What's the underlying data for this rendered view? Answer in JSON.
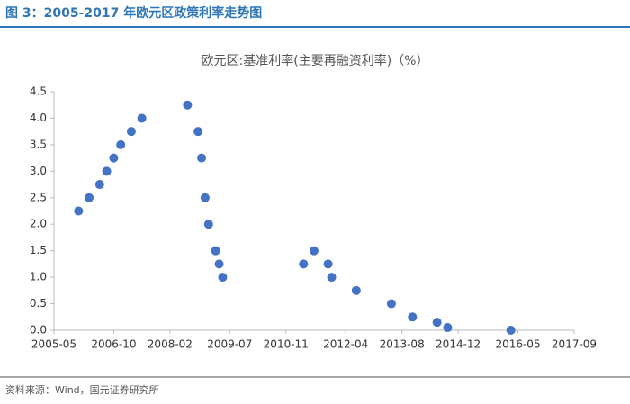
{
  "header": {
    "title": "图 3：2005-2017 年欧元区政策利率走势图"
  },
  "footer": {
    "source": "资料来源：Wind，国元证券研究所"
  },
  "chart_data": {
    "type": "scatter",
    "title": "欧元区:基准利率(主要再融资利率)（%）",
    "color": "#4472c4",
    "x": [
      "2005-12",
      "2006-03",
      "2006-06",
      "2006-08",
      "2006-10",
      "2006-12",
      "2007-03",
      "2007-06",
      "2008-07",
      "2008-10",
      "2008-11",
      "2008-12",
      "2009-01",
      "2009-03",
      "2009-04",
      "2009-05",
      "2011-04",
      "2011-07",
      "2011-11",
      "2011-12",
      "2012-07",
      "2013-05",
      "2013-11",
      "2014-06",
      "2014-09",
      "2016-03"
    ],
    "values": [
      2.25,
      2.5,
      2.75,
      3.0,
      3.25,
      3.5,
      3.75,
      4.0,
      4.25,
      3.75,
      3.25,
      2.5,
      2.0,
      1.5,
      1.25,
      1.0,
      1.25,
      1.5,
      1.25,
      1.0,
      0.75,
      0.5,
      0.25,
      0.15,
      0.05,
      0.0
    ],
    "xlim": [
      "2005-05",
      "2017-09"
    ],
    "xticks": [
      "2005-05",
      "2006-10",
      "2008-02",
      "2009-07",
      "2010-11",
      "2012-04",
      "2013-08",
      "2014-12",
      "2016-05",
      "2017-09"
    ],
    "ylim": [
      0,
      4.5
    ],
    "yticks": [
      {
        "value": 0,
        "label": "0.0"
      },
      {
        "value": 0.5,
        "label": "0.5"
      },
      {
        "value": 1,
        "label": "1.0"
      },
      {
        "value": 1.5,
        "label": "1.5"
      },
      {
        "value": 2,
        "label": "2.0"
      },
      {
        "value": 2.5,
        "label": "2.5"
      },
      {
        "value": 3,
        "label": "3.0"
      },
      {
        "value": 3.5,
        "label": "3.5"
      },
      {
        "value": 4,
        "label": "4.0"
      },
      {
        "value": 4.5,
        "label": "4.5"
      }
    ]
  }
}
